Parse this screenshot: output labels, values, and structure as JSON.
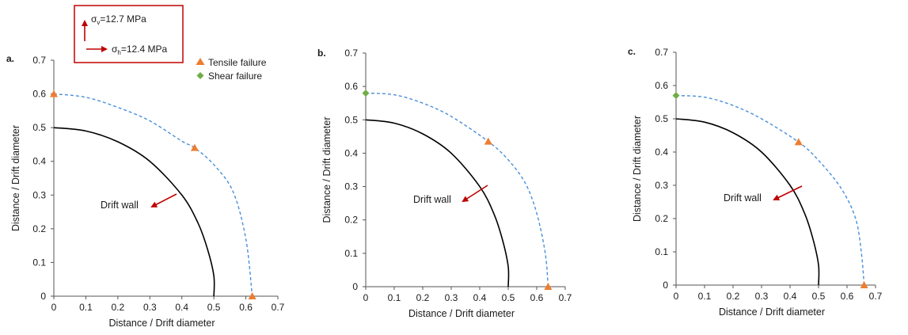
{
  "colors": {
    "wall": "#000000",
    "failure_zone": "#4a90d9",
    "tensile": "#ed7d31",
    "shear": "#70ad47",
    "arrow": "#c00000",
    "stress_box": "#c00000",
    "axis": "#555555"
  },
  "stress_box": {
    "sigma_v": "σv=12.7 MPa",
    "sigma_h": "σh=12.4 MPa"
  },
  "legend": {
    "tensile_label": "Tensile failure",
    "shear_label": "Shear failure"
  },
  "chart_data": [
    {
      "type": "line",
      "panel_label": "a.",
      "xlabel": "Distance / Drift diameter",
      "ylabel": "Distance / Drift diameter",
      "xlim": [
        0,
        0.7
      ],
      "ylim": [
        0,
        0.7
      ],
      "xticks": [
        "0",
        "0.1",
        "0.2",
        "0.3",
        "0.4",
        "0.5",
        "0.6",
        "0.7"
      ],
      "yticks": [
        "0",
        "0.1",
        "0.2",
        "0.3",
        "0.4",
        "0.5",
        "0.6",
        "0.7"
      ],
      "annotation": "Drift wall",
      "series": [
        {
          "style": "solid",
          "x": [
            0,
            0.1,
            0.2,
            0.3,
            0.4,
            0.45,
            0.48,
            0.5,
            0.5
          ],
          "y": [
            0.5,
            0.49,
            0.458,
            0.4,
            0.3,
            0.218,
            0.14,
            0.06,
            0
          ]
        },
        {
          "style": "dashed",
          "x": [
            0,
            0.1,
            0.2,
            0.3,
            0.4,
            0.44,
            0.5,
            0.56,
            0.6,
            0.62
          ],
          "y": [
            0.6,
            0.59,
            0.56,
            0.52,
            0.46,
            0.44,
            0.39,
            0.31,
            0.17,
            0
          ]
        }
      ],
      "tensile_points": [
        [
          0,
          0.6
        ],
        [
          0.44,
          0.44
        ],
        [
          0.62,
          0
        ]
      ],
      "shear_points": []
    },
    {
      "type": "line",
      "panel_label": "b.",
      "xlabel": "Distance / Drift diameter",
      "ylabel": "Distance / Drift diameter",
      "xlim": [
        0,
        0.7
      ],
      "ylim": [
        0,
        0.7
      ],
      "xticks": [
        "0",
        "0.1",
        "0.2",
        "0.3",
        "0.4",
        "0.5",
        "0.6",
        "0.7"
      ],
      "yticks": [
        "0",
        "0.1",
        "0.2",
        "0.3",
        "0.4",
        "0.5",
        "0.6",
        "0.7"
      ],
      "annotation": "Drift wall",
      "series": [
        {
          "style": "solid",
          "x": [
            0,
            0.1,
            0.2,
            0.3,
            0.4,
            0.45,
            0.48,
            0.5,
            0.5
          ],
          "y": [
            0.5,
            0.49,
            0.458,
            0.4,
            0.3,
            0.218,
            0.14,
            0.06,
            0
          ]
        },
        {
          "style": "dashed",
          "x": [
            0,
            0.1,
            0.2,
            0.3,
            0.43,
            0.5,
            0.56,
            0.6,
            0.63,
            0.64
          ],
          "y": [
            0.58,
            0.575,
            0.55,
            0.51,
            0.435,
            0.38,
            0.31,
            0.22,
            0.1,
            0
          ]
        }
      ],
      "tensile_points": [
        [
          0.43,
          0.435
        ],
        [
          0.64,
          0
        ]
      ],
      "shear_points": [
        [
          0,
          0.58
        ]
      ]
    },
    {
      "type": "line",
      "panel_label": "c.",
      "xlabel": "Distance / Drift diameter",
      "ylabel": "Distance / Drift diameter",
      "xlim": [
        0,
        0.7
      ],
      "ylim": [
        0,
        0.7
      ],
      "xticks": [
        "0",
        "0.1",
        "0.2",
        "0.3",
        "0.4",
        "0.5",
        "0.6",
        "0.7"
      ],
      "yticks": [
        "0",
        "0.1",
        "0.2",
        "0.3",
        "0.4",
        "0.5",
        "0.6",
        "0.7"
      ],
      "annotation": "Drift wall",
      "series": [
        {
          "style": "solid",
          "x": [
            0,
            0.1,
            0.2,
            0.3,
            0.4,
            0.45,
            0.48,
            0.5,
            0.5
          ],
          "y": [
            0.5,
            0.49,
            0.458,
            0.4,
            0.3,
            0.218,
            0.14,
            0.06,
            0
          ]
        },
        {
          "style": "dashed",
          "x": [
            0,
            0.1,
            0.2,
            0.3,
            0.43,
            0.5,
            0.58,
            0.63,
            0.65,
            0.66
          ],
          "y": [
            0.57,
            0.565,
            0.54,
            0.5,
            0.43,
            0.375,
            0.29,
            0.2,
            0.1,
            0
          ]
        }
      ],
      "tensile_points": [
        [
          0.43,
          0.43
        ],
        [
          0.66,
          0
        ]
      ],
      "shear_points": [
        [
          0,
          0.57
        ]
      ]
    }
  ]
}
